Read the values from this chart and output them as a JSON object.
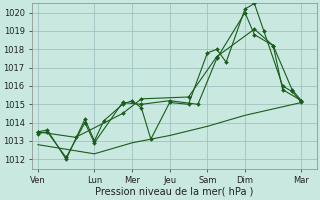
{
  "bg_color": "#c8e8e0",
  "grid_color": "#99bbbb",
  "line_color": "#1a5c1a",
  "title": "Pression niveau de la mer( hPa )",
  "ylim": [
    1011.5,
    1020.5
  ],
  "yticks": [
    1012,
    1013,
    1014,
    1015,
    1016,
    1017,
    1018,
    1019,
    1020
  ],
  "day_labels": [
    "Ven",
    "Lun",
    "Mer",
    "Jeu",
    "Sam",
    "Dim",
    "Mar"
  ],
  "day_positions": [
    0,
    3,
    5,
    7,
    9,
    11,
    14
  ],
  "xlim": [
    -0.3,
    14.8
  ],
  "series": [
    {
      "x": [
        0,
        0.5,
        1.5,
        2.5,
        3.0,
        3.5,
        4.5,
        5.0,
        5.5,
        6.0,
        7.0,
        8.0,
        9.0,
        9.5,
        10.0,
        11.0,
        11.5,
        12.0,
        13.0,
        13.5,
        14.0
      ],
      "y": [
        1013.5,
        1013.6,
        1012.0,
        1014.2,
        1013.0,
        1014.1,
        1015.0,
        1015.2,
        1014.8,
        1013.1,
        1015.1,
        1015.0,
        1017.8,
        1018.0,
        1017.3,
        1020.2,
        1020.5,
        1019.0,
        1016.0,
        1015.7,
        1015.1
      ],
      "marker": "D",
      "markersize": 2.0,
      "linewidth": 0.8
    },
    {
      "x": [
        0,
        0.5,
        1.5,
        2.5,
        3.0,
        4.5,
        5.5,
        7.0,
        8.5,
        9.5,
        11.0,
        11.5,
        12.5,
        13.0,
        14.0
      ],
      "y": [
        1013.4,
        1013.5,
        1012.1,
        1014.0,
        1012.9,
        1015.1,
        1015.0,
        1015.2,
        1015.0,
        1017.5,
        1020.0,
        1018.8,
        1018.2,
        1015.8,
        1015.2
      ],
      "marker": "D",
      "markersize": 2.0,
      "linewidth": 0.8
    },
    {
      "x": [
        0,
        2.0,
        4.5,
        5.5,
        8.0,
        9.5,
        11.5,
        12.5,
        13.5,
        14.0
      ],
      "y": [
        1013.5,
        1013.2,
        1014.5,
        1015.3,
        1015.4,
        1017.6,
        1019.1,
        1018.2,
        1015.8,
        1015.2
      ],
      "marker": "D",
      "markersize": 2.0,
      "linewidth": 0.8
    },
    {
      "x": [
        0,
        3,
        5,
        7,
        9,
        11,
        14
      ],
      "y": [
        1012.8,
        1012.3,
        1012.9,
        1013.3,
        1013.8,
        1014.4,
        1015.1
      ],
      "marker": null,
      "markersize": 0,
      "linewidth": 0.8
    }
  ],
  "xlabel_fontsize": 7,
  "tick_fontsize": 6,
  "figsize": [
    3.2,
    2.0
  ],
  "dpi": 100
}
